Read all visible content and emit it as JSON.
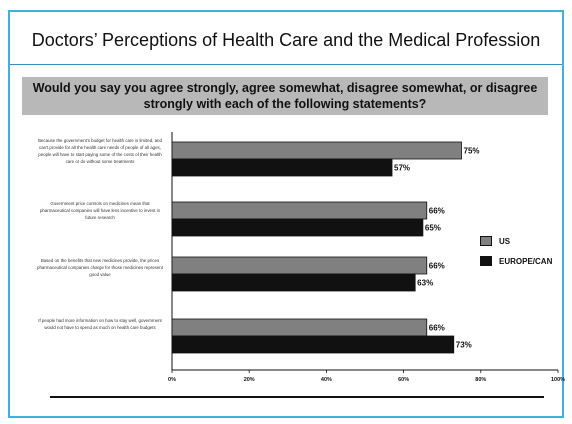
{
  "title": "Doctors’ Perceptions of Health Care and the Medical Profession",
  "question": "Would you say you agree strongly, agree somewhat, disagree somewhat, or disagree strongly with each of the following statements?",
  "colors": {
    "frame": "#3fb1dc",
    "us": "#808080",
    "europe": "#111111",
    "question_bg": "#b8b8b8"
  },
  "chart_data": {
    "type": "bar",
    "orientation": "horizontal",
    "categories": [
      "Because the government's budget for health care is limited, and can't provide for all the health care needs of people of all ages, people will have to start paying some of the costs of their health care or do without some treatments",
      "Government price controls on medicines mean that pharmaceutical companies will have less incentive to invest in future research",
      "Based on the benefits that new medicines provide, the prices pharmaceutical companies charge for those medicines represent good value",
      "If people had more information on how to stay well, government would not have to spend as much on health care budgets"
    ],
    "series": [
      {
        "name": "US",
        "values": [
          75,
          66,
          66,
          66
        ],
        "labels": [
          "75%",
          "66%",
          "66%",
          "66%"
        ]
      },
      {
        "name": "EUROPE/CAN",
        "values": [
          57,
          65,
          63,
          73
        ],
        "labels": [
          "57%",
          "65%",
          "63%",
          "73%"
        ]
      }
    ],
    "x_ticks": [
      "0%",
      "20%",
      "40%",
      "60%",
      "80%",
      "100%"
    ],
    "xlim": [
      0,
      100
    ],
    "grid": false,
    "legend_position": "right"
  }
}
